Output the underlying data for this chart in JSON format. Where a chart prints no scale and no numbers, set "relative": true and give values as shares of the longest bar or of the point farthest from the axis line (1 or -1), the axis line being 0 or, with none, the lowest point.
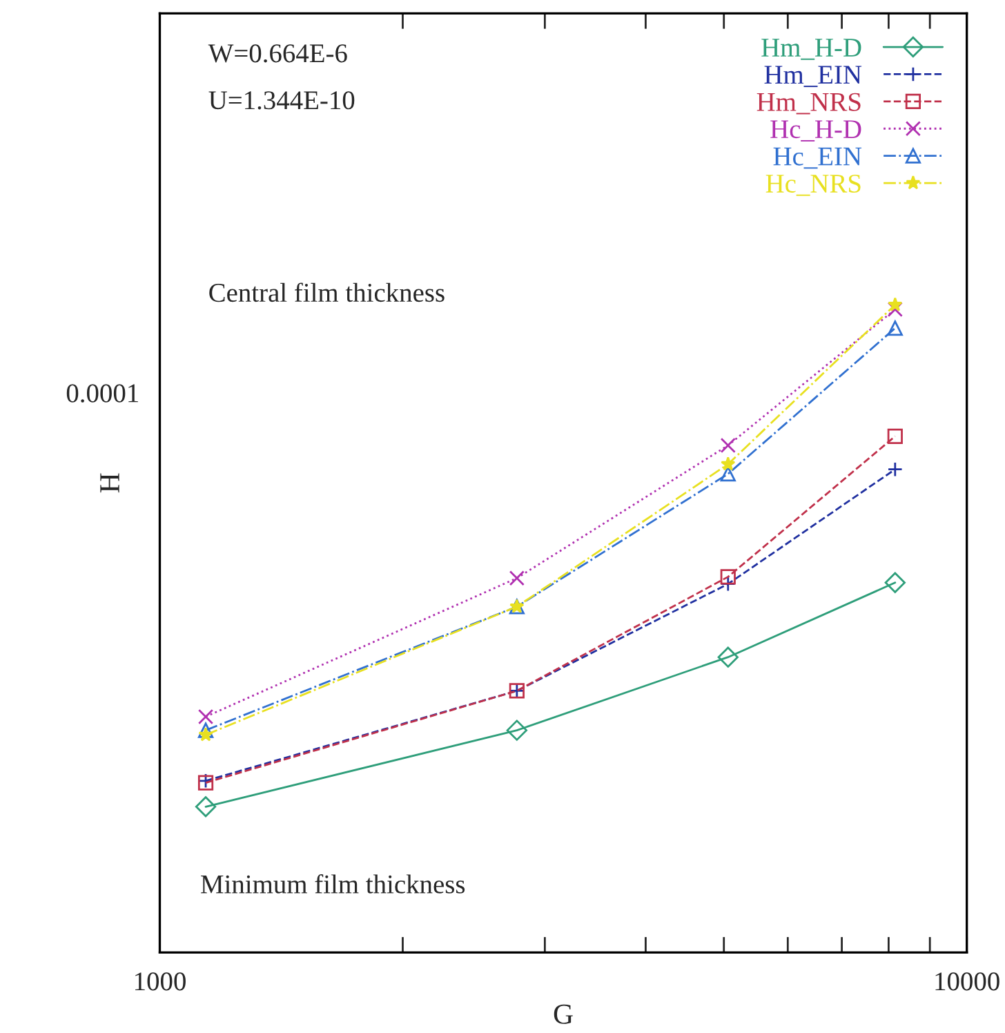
{
  "chart_data": {
    "type": "line",
    "xlabel": "G",
    "ylabel": "H",
    "log": "x",
    "relative": true,
    "x": [
      1140,
      2770,
      5060,
      8150
    ],
    "series": [
      {
        "name": "Hm_H-D",
        "color": "#2e9e7a",
        "marker": "diamond",
        "line_style": "solid",
        "values": [
          0.225,
          0.343,
          0.456,
          0.571
        ]
      },
      {
        "name": "Hm_EIN",
        "color": "#2030a0",
        "marker": "plus",
        "line_style": "dashed",
        "values": [
          0.265,
          0.404,
          0.569,
          0.746
        ]
      },
      {
        "name": "Hm_NRS",
        "color": "#c0304a",
        "marker": "square",
        "line_style": "dashed",
        "values": [
          0.262,
          0.404,
          0.58,
          0.797
        ]
      },
      {
        "name": "Hc_H-D",
        "color": "#b030b0",
        "marker": "cross",
        "line_style": "dotted",
        "values": [
          0.364,
          0.578,
          0.783,
          0.993
        ]
      },
      {
        "name": "Hc_EIN",
        "color": "#3070d0",
        "marker": "triangle",
        "line_style": "dashdot",
        "values": [
          0.343,
          0.534,
          0.739,
          0.964
        ]
      },
      {
        "name": "Hc_NRS",
        "color": "#e8e020",
        "marker": "star",
        "line_style": "dashdot",
        "values": [
          0.336,
          0.534,
          0.754,
          1.0
        ]
      }
    ],
    "xlim": [
      1000,
      10000
    ],
    "xticks": [
      1000,
      {
        "value": 2000,
        "label": null
      },
      {
        "value": 3000,
        "label": null
      },
      {
        "value": 4000,
        "label": null
      },
      {
        "value": 5000,
        "label": null
      },
      {
        "value": 6000,
        "label": null
      },
      {
        "value": 7000,
        "label": null
      },
      {
        "value": 8000,
        "label": null
      },
      {
        "value": 9000,
        "label": null
      },
      10000
    ],
    "annotations": [
      "W=0.664E-6",
      "U=1.344E-10",
      "Central film thickness",
      "Minimum film thickness",
      "0.0001"
    ],
    "legend": "top right",
    "grid": false
  }
}
